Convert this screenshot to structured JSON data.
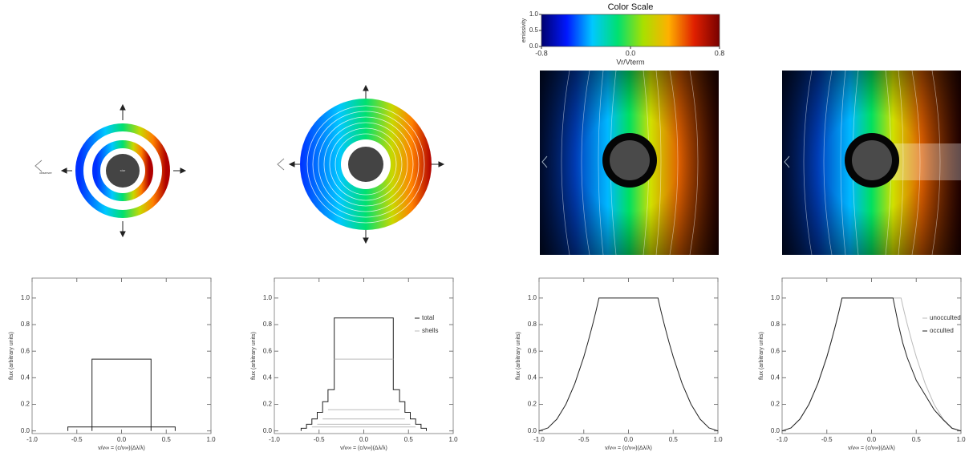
{
  "chart_data": [
    {
      "type": "colorbar",
      "title": "Color Scale",
      "xlabel": "Vr/Vterm",
      "ylabel": "emissivity",
      "colors": [
        "#00006e",
        "#0018ff",
        "#00c8ff",
        "#00e070",
        "#a8e000",
        "#ffb000",
        "#e02000",
        "#780000"
      ],
      "xlim": [
        -0.8,
        0.8
      ],
      "xticks": [
        {
          "value": -0.8,
          "label": "-0.8"
        },
        {
          "value": 0,
          "label": "0.0"
        },
        {
          "value": 0.8,
          "label": "0.8"
        }
      ],
      "ylim": [
        0,
        1
      ],
      "yticks": [
        {
          "value": 0,
          "label": "0.0"
        },
        {
          "value": 0.5,
          "label": "0.5"
        },
        {
          "value": 1,
          "label": "1.0"
        }
      ]
    },
    {
      "type": "line",
      "xlabel": "v/v∞ = (c/v∞)(Δλ/λ)",
      "ylabel": "flux (arbitrary units)",
      "xlim": [
        -1,
        1
      ],
      "ylim": [
        -0.02,
        1.15
      ],
      "xticks": [
        {
          "value": -1,
          "label": "-1.0"
        },
        {
          "value": -0.5,
          "label": "-0.5"
        },
        {
          "value": 0,
          "label": "0.0"
        },
        {
          "value": 0.5,
          "label": "0.5"
        },
        {
          "value": 1,
          "label": "1.0"
        }
      ],
      "yticks": [
        {
          "value": 0,
          "label": "0.0"
        },
        {
          "value": 0.2,
          "label": "0.2"
        },
        {
          "value": 0.4,
          "label": "0.4"
        },
        {
          "value": 0.6,
          "label": "0.6"
        },
        {
          "value": 0.8,
          "label": "0.8"
        },
        {
          "value": 1,
          "label": "1.0"
        }
      ],
      "series": [
        {
          "color": "#222222",
          "x": [
            -0.6,
            -0.6,
            0.6,
            0.6
          ],
          "values": [
            0,
            0.03,
            0.03,
            0
          ]
        },
        {
          "color": "#222222",
          "x": [
            -0.33,
            -0.33,
            0.33,
            0.33
          ],
          "values": [
            0,
            0.54,
            0.54,
            0
          ]
        }
      ]
    },
    {
      "type": "line",
      "xlabel": "v/v∞ = (c/v∞)(Δλ/λ)",
      "ylabel": "flux (arbitrary units)",
      "xlim": [
        -1,
        1
      ],
      "ylim": [
        -0.02,
        1.15
      ],
      "xticks": [
        {
          "value": -1,
          "label": "-1.0"
        },
        {
          "value": -0.5,
          "label": "-0.5"
        },
        {
          "value": 0,
          "label": "0.0"
        },
        {
          "value": 0.5,
          "label": "0.5"
        },
        {
          "value": 1,
          "label": "1.0"
        }
      ],
      "yticks": [
        {
          "value": 0,
          "label": "0.0"
        },
        {
          "value": 0.2,
          "label": "0.2"
        },
        {
          "value": 0.4,
          "label": "0.4"
        },
        {
          "value": 0.6,
          "label": "0.6"
        },
        {
          "value": 0.8,
          "label": "0.8"
        },
        {
          "value": 1,
          "label": "1.0"
        }
      ],
      "legend": "upper right",
      "series": [
        {
          "name": "total",
          "color": "#222222",
          "x": [
            -0.7,
            -0.7,
            -0.64,
            -0.64,
            -0.58,
            -0.58,
            -0.52,
            -0.52,
            -0.46,
            -0.46,
            -0.4,
            -0.4,
            -0.33,
            -0.33,
            0.33,
            0.33,
            0.4,
            0.4,
            0.46,
            0.46,
            0.52,
            0.52,
            0.58,
            0.58,
            0.64,
            0.64,
            0.7,
            0.7
          ],
          "values": [
            0,
            0.02,
            0.02,
            0.05,
            0.05,
            0.09,
            0.09,
            0.14,
            0.14,
            0.22,
            0.22,
            0.31,
            0.31,
            0.85,
            0.85,
            0.31,
            0.31,
            0.22,
            0.22,
            0.14,
            0.14,
            0.09,
            0.09,
            0.05,
            0.05,
            0.02,
            0.02,
            0
          ]
        },
        {
          "name": "shells",
          "color": "#bbbbbb",
          "x": [
            -0.33,
            0.33,
            0.33,
            -0.4,
            0.4,
            0.4,
            -0.46,
            0.46,
            0.46,
            -0.52,
            0.52,
            0.52,
            -0.58,
            0.58
          ],
          "values": [
            0.54,
            0.54,
            null,
            0.16,
            0.16,
            null,
            0.09,
            0.09,
            null,
            0.05,
            0.05,
            null,
            0.03,
            0.03
          ]
        }
      ]
    },
    {
      "type": "line",
      "xlabel": "v/v∞ = (c/v∞)(Δλ/λ)",
      "ylabel": "flux (arbitrary units)",
      "xlim": [
        -1,
        1
      ],
      "ylim": [
        -0.02,
        1.15
      ],
      "xticks": [
        {
          "value": -1,
          "label": "-1.0"
        },
        {
          "value": -0.5,
          "label": "-0.5"
        },
        {
          "value": 0,
          "label": "0.0"
        },
        {
          "value": 0.5,
          "label": "0.5"
        },
        {
          "value": 1,
          "label": "1.0"
        }
      ],
      "yticks": [
        {
          "value": 0,
          "label": "0.0"
        },
        {
          "value": 0.2,
          "label": "0.2"
        },
        {
          "value": 0.4,
          "label": "0.4"
        },
        {
          "value": 0.6,
          "label": "0.6"
        },
        {
          "value": 0.8,
          "label": "0.8"
        },
        {
          "value": 1,
          "label": "1.0"
        }
      ],
      "series": [
        {
          "color": "#222222",
          "x": [
            -1,
            -0.9,
            -0.8,
            -0.7,
            -0.6,
            -0.5,
            -0.45,
            -0.4,
            -0.36,
            -0.33,
            0.33,
            0.36,
            0.4,
            0.45,
            0.5,
            0.6,
            0.7,
            0.8,
            0.9,
            1
          ],
          "values": [
            0,
            0.022,
            0.089,
            0.2,
            0.356,
            0.557,
            0.674,
            0.802,
            0.912,
            1,
            1,
            0.912,
            0.802,
            0.674,
            0.557,
            0.356,
            0.2,
            0.089,
            0.022,
            0
          ]
        }
      ]
    },
    {
      "type": "line",
      "xlabel": "v/v∞ = (c/v∞)(Δλ/λ)",
      "ylabel": "flux (arbitrary units)",
      "xlim": [
        -1,
        1
      ],
      "ylim": [
        -0.02,
        1.15
      ],
      "xticks": [
        {
          "value": -1,
          "label": "-1.0"
        },
        {
          "value": -0.5,
          "label": "-0.5"
        },
        {
          "value": 0,
          "label": "0.0"
        },
        {
          "value": 0.5,
          "label": "0.5"
        },
        {
          "value": 1,
          "label": "1.0"
        }
      ],
      "yticks": [
        {
          "value": 0,
          "label": "0.0"
        },
        {
          "value": 0.2,
          "label": "0.2"
        },
        {
          "value": 0.4,
          "label": "0.4"
        },
        {
          "value": 0.6,
          "label": "0.6"
        },
        {
          "value": 0.8,
          "label": "0.8"
        },
        {
          "value": 1,
          "label": "1.0"
        }
      ],
      "legend": "upper right",
      "series": [
        {
          "name": "unocculted",
          "color": "#bbbbbb",
          "x": [
            -1,
            -0.9,
            -0.8,
            -0.7,
            -0.6,
            -0.5,
            -0.45,
            -0.4,
            -0.36,
            -0.33,
            0.33,
            0.36,
            0.4,
            0.45,
            0.5,
            0.6,
            0.7,
            0.8,
            0.9,
            1
          ],
          "values": [
            0,
            0.022,
            0.089,
            0.2,
            0.356,
            0.557,
            0.674,
            0.802,
            0.912,
            1,
            1,
            0.912,
            0.802,
            0.674,
            0.557,
            0.356,
            0.2,
            0.089,
            0.022,
            0
          ]
        },
        {
          "name": "occulted",
          "color": "#222222",
          "x": [
            -1,
            -0.9,
            -0.8,
            -0.7,
            -0.6,
            -0.5,
            -0.45,
            -0.4,
            -0.36,
            -0.33,
            0.24,
            0.3,
            0.35,
            0.4,
            0.5,
            0.6,
            0.7,
            0.8,
            0.9,
            1
          ],
          "values": [
            0,
            0.022,
            0.089,
            0.2,
            0.356,
            0.557,
            0.674,
            0.802,
            0.912,
            1,
            1,
            0.8,
            0.66,
            0.55,
            0.38,
            0.27,
            0.16,
            0.085,
            0.02,
            0
          ]
        }
      ]
    }
  ],
  "diagrams": {
    "observer": "observer",
    "star": "star"
  }
}
